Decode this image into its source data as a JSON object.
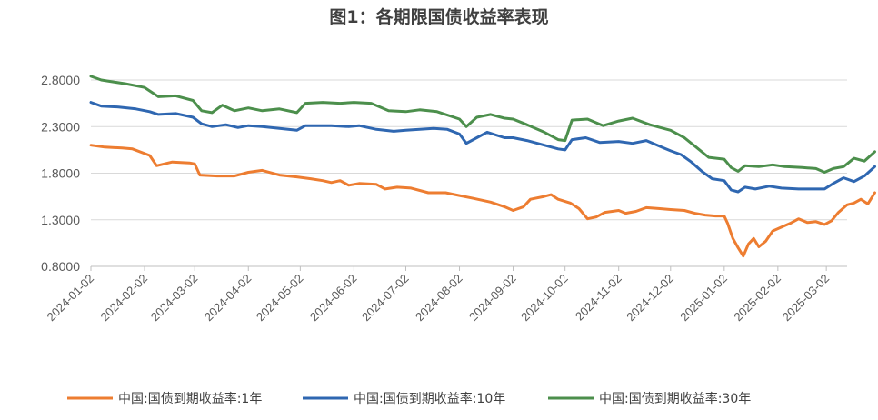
{
  "chart_data": {
    "type": "line",
    "title": "图1：各期限国债收益率表现",
    "xlabel": "",
    "ylabel": "",
    "ylim": [
      0.8,
      2.8
    ],
    "yticks": [
      "0.8000",
      "1.3000",
      "1.8000",
      "2.3000",
      "2.8000"
    ],
    "ytick_values": [
      0.8,
      1.3,
      1.8,
      2.3,
      2.8
    ],
    "xticks": [
      "2024-01-02",
      "2024-02-02",
      "2024-03-02",
      "2024-04-02",
      "2024-05-02",
      "2024-06-02",
      "2024-07-02",
      "2024-08-02",
      "2024-09-02",
      "2024-10-02",
      "2024-11-02",
      "2024-12-02",
      "2025-01-02",
      "2025-02-02",
      "2025-03-02"
    ],
    "x_range": [
      "2024-01-02",
      "2025-03-14"
    ],
    "grid": "horizontal",
    "legend": "bottom",
    "series": [
      {
        "name": "中国:国债到期收益率:1年",
        "color": "#ED7D31",
        "points": [
          [
            "2024-01-02",
            2.1
          ],
          [
            "2024-01-10",
            2.08
          ],
          [
            "2024-01-20",
            2.07
          ],
          [
            "2024-01-26",
            2.06
          ],
          [
            "2024-02-05",
            1.99
          ],
          [
            "2024-02-09",
            1.88
          ],
          [
            "2024-02-18",
            1.92
          ],
          [
            "2024-02-28",
            1.91
          ],
          [
            "2024-03-02",
            1.9
          ],
          [
            "2024-03-05",
            1.78
          ],
          [
            "2024-03-15",
            1.77
          ],
          [
            "2024-03-25",
            1.77
          ],
          [
            "2024-04-02",
            1.81
          ],
          [
            "2024-04-10",
            1.83
          ],
          [
            "2024-04-20",
            1.78
          ],
          [
            "2024-04-30",
            1.76
          ],
          [
            "2024-05-08",
            1.74
          ],
          [
            "2024-05-15",
            1.72
          ],
          [
            "2024-05-20",
            1.7
          ],
          [
            "2024-05-25",
            1.72
          ],
          [
            "2024-05-30",
            1.67
          ],
          [
            "2024-06-05",
            1.69
          ],
          [
            "2024-06-15",
            1.68
          ],
          [
            "2024-06-20",
            1.63
          ],
          [
            "2024-06-27",
            1.65
          ],
          [
            "2024-07-05",
            1.64
          ],
          [
            "2024-07-15",
            1.59
          ],
          [
            "2024-07-25",
            1.59
          ],
          [
            "2024-08-02",
            1.56
          ],
          [
            "2024-08-10",
            1.53
          ],
          [
            "2024-08-20",
            1.49
          ],
          [
            "2024-08-28",
            1.44
          ],
          [
            "2024-09-02",
            1.4
          ],
          [
            "2024-09-08",
            1.44
          ],
          [
            "2024-09-12",
            1.52
          ],
          [
            "2024-09-20",
            1.55
          ],
          [
            "2024-09-24",
            1.57
          ],
          [
            "2024-09-28",
            1.52
          ],
          [
            "2024-10-05",
            1.48
          ],
          [
            "2024-10-10",
            1.42
          ],
          [
            "2024-10-15",
            1.31
          ],
          [
            "2024-10-20",
            1.33
          ],
          [
            "2024-10-25",
            1.38
          ],
          [
            "2024-11-02",
            1.4
          ],
          [
            "2024-11-06",
            1.37
          ],
          [
            "2024-11-12",
            1.39
          ],
          [
            "2024-11-18",
            1.43
          ],
          [
            "2024-11-25",
            1.42
          ],
          [
            "2024-12-02",
            1.41
          ],
          [
            "2024-12-10",
            1.4
          ],
          [
            "2024-12-16",
            1.37
          ],
          [
            "2024-12-22",
            1.35
          ],
          [
            "2024-12-28",
            1.34
          ],
          [
            "2025-01-02",
            1.34
          ],
          [
            "2025-01-04",
            1.26
          ],
          [
            "2025-01-07",
            1.1
          ],
          [
            "2025-01-10",
            1.0
          ],
          [
            "2025-01-13",
            0.91
          ],
          [
            "2025-01-16",
            1.04
          ],
          [
            "2025-01-19",
            1.1
          ],
          [
            "2025-01-22",
            1.01
          ],
          [
            "2025-01-26",
            1.07
          ],
          [
            "2025-01-30",
            1.18
          ],
          [
            "2025-02-04",
            1.22
          ],
          [
            "2025-02-09",
            1.26
          ],
          [
            "2025-02-14",
            1.31
          ],
          [
            "2025-02-19",
            1.27
          ],
          [
            "2025-02-24",
            1.28
          ],
          [
            "2025-03-01",
            1.25
          ],
          [
            "2025-03-05",
            1.29
          ],
          [
            "2025-03-09",
            1.38
          ],
          [
            "2025-03-14",
            1.46
          ],
          [
            "2025-03-18",
            1.48
          ],
          [
            "2025-03-22",
            1.52
          ],
          [
            "2025-03-26",
            1.47
          ],
          [
            "2025-03-30",
            1.59
          ]
        ]
      },
      {
        "name": "中国:国债到期收益率:10年",
        "color": "#2F67B1",
        "points": [
          [
            "2024-01-02",
            2.56
          ],
          [
            "2024-01-08",
            2.52
          ],
          [
            "2024-01-18",
            2.51
          ],
          [
            "2024-01-28",
            2.49
          ],
          [
            "2024-02-05",
            2.46
          ],
          [
            "2024-02-10",
            2.43
          ],
          [
            "2024-02-20",
            2.44
          ],
          [
            "2024-03-01",
            2.4
          ],
          [
            "2024-03-06",
            2.33
          ],
          [
            "2024-03-12",
            2.3
          ],
          [
            "2024-03-20",
            2.32
          ],
          [
            "2024-03-27",
            2.29
          ],
          [
            "2024-04-02",
            2.31
          ],
          [
            "2024-04-10",
            2.3
          ],
          [
            "2024-04-20",
            2.28
          ],
          [
            "2024-04-30",
            2.26
          ],
          [
            "2024-05-05",
            2.31
          ],
          [
            "2024-05-12",
            2.31
          ],
          [
            "2024-05-20",
            2.31
          ],
          [
            "2024-05-30",
            2.3
          ],
          [
            "2024-06-05",
            2.31
          ],
          [
            "2024-06-15",
            2.27
          ],
          [
            "2024-06-25",
            2.25
          ],
          [
            "2024-07-02",
            2.26
          ],
          [
            "2024-07-10",
            2.27
          ],
          [
            "2024-07-18",
            2.28
          ],
          [
            "2024-07-26",
            2.27
          ],
          [
            "2024-08-02",
            2.22
          ],
          [
            "2024-08-06",
            2.12
          ],
          [
            "2024-08-12",
            2.18
          ],
          [
            "2024-08-18",
            2.24
          ],
          [
            "2024-08-28",
            2.18
          ],
          [
            "2024-09-02",
            2.18
          ],
          [
            "2024-09-10",
            2.15
          ],
          [
            "2024-09-20",
            2.1
          ],
          [
            "2024-09-28",
            2.06
          ],
          [
            "2024-10-02",
            2.05
          ],
          [
            "2024-10-06",
            2.16
          ],
          [
            "2024-10-14",
            2.18
          ],
          [
            "2024-10-22",
            2.13
          ],
          [
            "2024-11-02",
            2.14
          ],
          [
            "2024-11-10",
            2.12
          ],
          [
            "2024-11-18",
            2.15
          ],
          [
            "2024-11-28",
            2.07
          ],
          [
            "2024-12-02",
            2.04
          ],
          [
            "2024-12-08",
            2.0
          ],
          [
            "2024-12-14",
            1.92
          ],
          [
            "2024-12-20",
            1.82
          ],
          [
            "2024-12-26",
            1.74
          ],
          [
            "2025-01-02",
            1.72
          ],
          [
            "2025-01-06",
            1.62
          ],
          [
            "2025-01-10",
            1.6
          ],
          [
            "2025-01-14",
            1.65
          ],
          [
            "2025-01-20",
            1.63
          ],
          [
            "2025-01-28",
            1.66
          ],
          [
            "2025-02-04",
            1.64
          ],
          [
            "2025-02-14",
            1.63
          ],
          [
            "2025-02-24",
            1.63
          ],
          [
            "2025-03-01",
            1.63
          ],
          [
            "2025-03-06",
            1.69
          ],
          [
            "2025-03-12",
            1.75
          ],
          [
            "2025-03-18",
            1.71
          ],
          [
            "2025-03-24",
            1.77
          ],
          [
            "2025-03-30",
            1.87
          ]
        ]
      },
      {
        "name": "中国:国债到期收益率:30年",
        "color": "#4C8F4C",
        "points": [
          [
            "2024-01-02",
            2.84
          ],
          [
            "2024-01-08",
            2.8
          ],
          [
            "2024-01-15",
            2.78
          ],
          [
            "2024-01-22",
            2.76
          ],
          [
            "2024-02-02",
            2.72
          ],
          [
            "2024-02-10",
            2.62
          ],
          [
            "2024-02-20",
            2.63
          ],
          [
            "2024-03-01",
            2.58
          ],
          [
            "2024-03-06",
            2.47
          ],
          [
            "2024-03-12",
            2.45
          ],
          [
            "2024-03-18",
            2.53
          ],
          [
            "2024-03-25",
            2.47
          ],
          [
            "2024-04-02",
            2.5
          ],
          [
            "2024-04-10",
            2.47
          ],
          [
            "2024-04-20",
            2.49
          ],
          [
            "2024-04-30",
            2.45
          ],
          [
            "2024-05-05",
            2.55
          ],
          [
            "2024-05-15",
            2.56
          ],
          [
            "2024-05-25",
            2.55
          ],
          [
            "2024-06-02",
            2.56
          ],
          [
            "2024-06-12",
            2.55
          ],
          [
            "2024-06-22",
            2.47
          ],
          [
            "2024-07-02",
            2.46
          ],
          [
            "2024-07-10",
            2.48
          ],
          [
            "2024-07-20",
            2.46
          ],
          [
            "2024-08-02",
            2.38
          ],
          [
            "2024-08-06",
            2.3
          ],
          [
            "2024-08-12",
            2.4
          ],
          [
            "2024-08-20",
            2.43
          ],
          [
            "2024-08-28",
            2.39
          ],
          [
            "2024-09-02",
            2.38
          ],
          [
            "2024-09-10",
            2.32
          ],
          [
            "2024-09-20",
            2.24
          ],
          [
            "2024-09-28",
            2.16
          ],
          [
            "2024-10-02",
            2.15
          ],
          [
            "2024-10-06",
            2.37
          ],
          [
            "2024-10-15",
            2.38
          ],
          [
            "2024-10-24",
            2.31
          ],
          [
            "2024-11-02",
            2.36
          ],
          [
            "2024-11-10",
            2.39
          ],
          [
            "2024-11-20",
            2.32
          ],
          [
            "2024-11-28",
            2.28
          ],
          [
            "2024-12-02",
            2.26
          ],
          [
            "2024-12-10",
            2.18
          ],
          [
            "2024-12-18",
            2.06
          ],
          [
            "2024-12-24",
            1.97
          ],
          [
            "2025-01-02",
            1.95
          ],
          [
            "2025-01-06",
            1.86
          ],
          [
            "2025-01-10",
            1.82
          ],
          [
            "2025-01-14",
            1.88
          ],
          [
            "2025-01-22",
            1.87
          ],
          [
            "2025-01-30",
            1.89
          ],
          [
            "2025-02-06",
            1.87
          ],
          [
            "2025-02-16",
            1.86
          ],
          [
            "2025-02-24",
            1.85
          ],
          [
            "2025-03-01",
            1.81
          ],
          [
            "2025-03-06",
            1.85
          ],
          [
            "2025-03-12",
            1.87
          ],
          [
            "2025-03-18",
            1.96
          ],
          [
            "2025-03-24",
            1.93
          ],
          [
            "2025-03-30",
            2.03
          ]
        ]
      }
    ]
  }
}
